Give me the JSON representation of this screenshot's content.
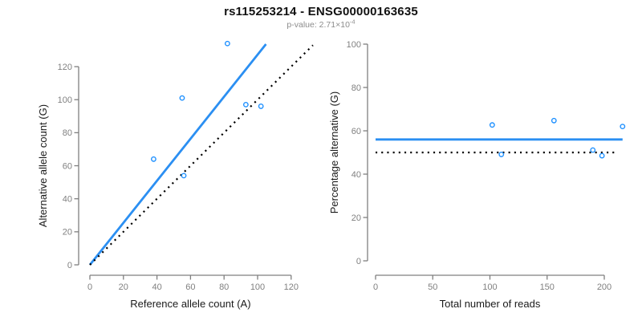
{
  "header": {
    "title": "rs115253214 - ENSG00000163635",
    "subtitle_base": "p-value: 2.71×10",
    "subtitle_exponent": "-4"
  },
  "colors": {
    "accent_blue": "#1E90FF",
    "line_blue": "#2B8FF2",
    "dotted_black": "#000000",
    "axis": "#7f7f7f",
    "tick_label": "#808080",
    "axis_title": "#1a1a1a",
    "title_text": "#111111",
    "subtitle_text": "#8c8c8c",
    "background": "#ffffff"
  },
  "chart_data": [
    {
      "type": "scatter",
      "panel": "left",
      "xlabel": "Reference allele count (A)",
      "ylabel": "Alternative allele count (G)",
      "xlim": [
        0,
        120
      ],
      "ylim": [
        0,
        120
      ],
      "xticks": [
        0,
        20,
        40,
        60,
        80,
        100,
        120
      ],
      "yticks": [
        0,
        20,
        40,
        60,
        80,
        100,
        120
      ],
      "grid": false,
      "legend": null,
      "point_color": "#1E90FF",
      "points": [
        [
          38,
          64
        ],
        [
          55,
          101
        ],
        [
          56,
          54
        ],
        [
          82,
          134
        ],
        [
          93,
          97
        ],
        [
          102,
          96
        ]
      ],
      "lines": [
        {
          "name": "fitted-allelic-ratio",
          "style": "solid",
          "color": "#2B8FF2",
          "width": 2.8,
          "x": [
            0,
            105
          ],
          "y": [
            0,
            133.6
          ]
        },
        {
          "name": "identity-line",
          "style": "dotted",
          "color": "#000000",
          "width": 2.2,
          "x": [
            0,
            133
          ],
          "y": [
            0,
            133
          ]
        }
      ]
    },
    {
      "type": "scatter",
      "panel": "right",
      "xlabel": "Total number of reads",
      "ylabel": "Percentage alternative (G)",
      "xlim": [
        0,
        200
      ],
      "ylim": [
        0,
        100
      ],
      "xticks": [
        0,
        50,
        100,
        150,
        200
      ],
      "yticks": [
        0,
        20,
        40,
        60,
        80,
        100
      ],
      "grid": false,
      "legend": null,
      "point_color": "#1E90FF",
      "points": [
        [
          102,
          62.7
        ],
        [
          156,
          64.7
        ],
        [
          110,
          49.1
        ],
        [
          216,
          62.0
        ],
        [
          190,
          51.1
        ],
        [
          198,
          48.5
        ]
      ],
      "lines": [
        {
          "name": "fitted-percentage",
          "style": "solid",
          "color": "#2B8FF2",
          "width": 2.8,
          "x": [
            0,
            216
          ],
          "y": [
            56.0,
            56.0
          ]
        },
        {
          "name": "null-50-percent",
          "style": "dotted",
          "color": "#000000",
          "width": 2.2,
          "x": [
            0,
            212
          ],
          "y": [
            50,
            50
          ]
        }
      ]
    }
  ]
}
